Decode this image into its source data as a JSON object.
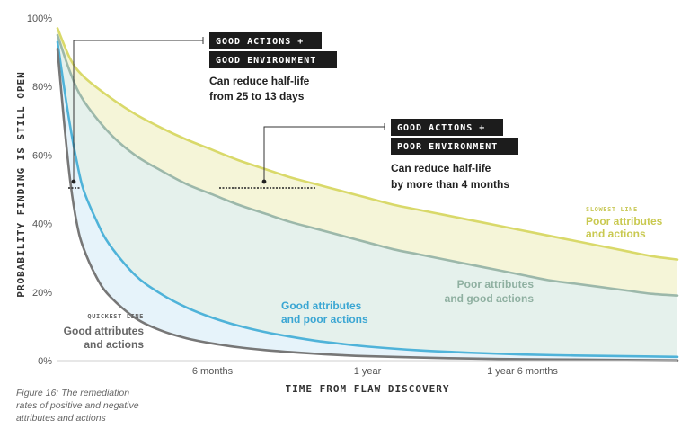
{
  "chart_data": {
    "type": "line",
    "xlabel": "TIME FROM FLAW DISCOVERY",
    "ylabel": "PROBABILITY FINDING IS STILL OPEN",
    "xlim": [
      0,
      24
    ],
    "ylim": [
      0,
      100
    ],
    "x_ticks": [
      {
        "value": 6,
        "label": "6 months"
      },
      {
        "value": 12,
        "label": "1 year"
      },
      {
        "value": 18,
        "label": "1 year 6 months"
      }
    ],
    "y_ticks": [
      {
        "value": 0,
        "label": "0%"
      },
      {
        "value": 20,
        "label": "20%"
      },
      {
        "value": 40,
        "label": "40%"
      },
      {
        "value": 60,
        "label": "60%"
      },
      {
        "value": 80,
        "label": "80%"
      },
      {
        "value": 100,
        "label": "100%"
      }
    ],
    "grid": false,
    "series": [
      {
        "name": "Poor attributes and actions",
        "tag": "SLOWEST LINE",
        "color": "#d9d96a",
        "x": [
          0,
          0.5,
          1,
          2,
          3,
          4,
          5,
          6,
          7,
          8,
          9,
          10,
          11,
          12,
          13,
          14,
          15,
          16,
          17,
          18,
          19,
          20,
          21,
          22,
          23,
          24
        ],
        "y": [
          97,
          88,
          83,
          77,
          72,
          68,
          64.5,
          61.5,
          58.5,
          56,
          53.5,
          51.5,
          49.5,
          47.5,
          45.5,
          44,
          42.5,
          41,
          39.5,
          38,
          36.5,
          35,
          33.5,
          32,
          30.5,
          29.5
        ]
      },
      {
        "name": "Poor attributes and good actions",
        "color": "#9cb8aa",
        "x": [
          0,
          0.5,
          1,
          2,
          3,
          4,
          5,
          6,
          7,
          8,
          9,
          10,
          11,
          12,
          13,
          14,
          15,
          16,
          17,
          18,
          19,
          20,
          21,
          22,
          23,
          24
        ],
        "y": [
          95,
          84,
          76,
          66.5,
          60,
          55.5,
          51.5,
          48.5,
          45.5,
          43,
          40.5,
          38.5,
          36.5,
          34.5,
          32.5,
          31,
          29.5,
          28,
          26.5,
          25,
          23.5,
          22.5,
          21.5,
          20.5,
          19.5,
          19
        ]
      },
      {
        "name": "Good attributes and poor actions",
        "color": "#4fb3d9",
        "x": [
          0,
          0.25,
          0.5,
          0.75,
          1,
          1.5,
          2,
          3,
          4,
          5,
          6,
          7,
          8,
          9,
          10,
          11,
          12,
          14,
          16,
          18,
          20,
          22,
          24
        ],
        "y": [
          93,
          80,
          68,
          58,
          50,
          41,
          34,
          25,
          19.5,
          15.5,
          12.5,
          10.2,
          8.4,
          7,
          5.8,
          4.9,
          4.1,
          3,
          2.3,
          1.8,
          1.5,
          1.3,
          1.1
        ]
      },
      {
        "name": "Good attributes and actions",
        "tag": "QUICKEST LINE",
        "color": "#777777",
        "x": [
          0,
          0.25,
          0.5,
          0.75,
          1,
          1.5,
          2,
          3,
          4,
          5,
          6,
          7,
          8,
          9,
          10,
          11,
          12,
          14,
          16,
          18,
          20,
          22,
          24
        ],
        "y": [
          91,
          70,
          52,
          40,
          33,
          24.5,
          19,
          12.5,
          8.8,
          6.5,
          5,
          3.9,
          3.1,
          2.5,
          2,
          1.6,
          1.3,
          0.9,
          0.6,
          0.4,
          0.3,
          0.2,
          0.1
        ]
      }
    ],
    "annotations": [
      {
        "box": [
          "GOOD ACTIONS +",
          "GOOD ENVIRONMENT"
        ],
        "text": [
          "Can reduce half-life",
          "from 25 to 13 days"
        ]
      },
      {
        "box": [
          "GOOD ACTIONS +",
          "POOR ENVIRONMENT"
        ],
        "text": [
          "Can reduce half-life",
          "by more than 4 months"
        ]
      }
    ]
  },
  "caption": "Figure 16: The remediation rates of positive and negative attributes and actions"
}
